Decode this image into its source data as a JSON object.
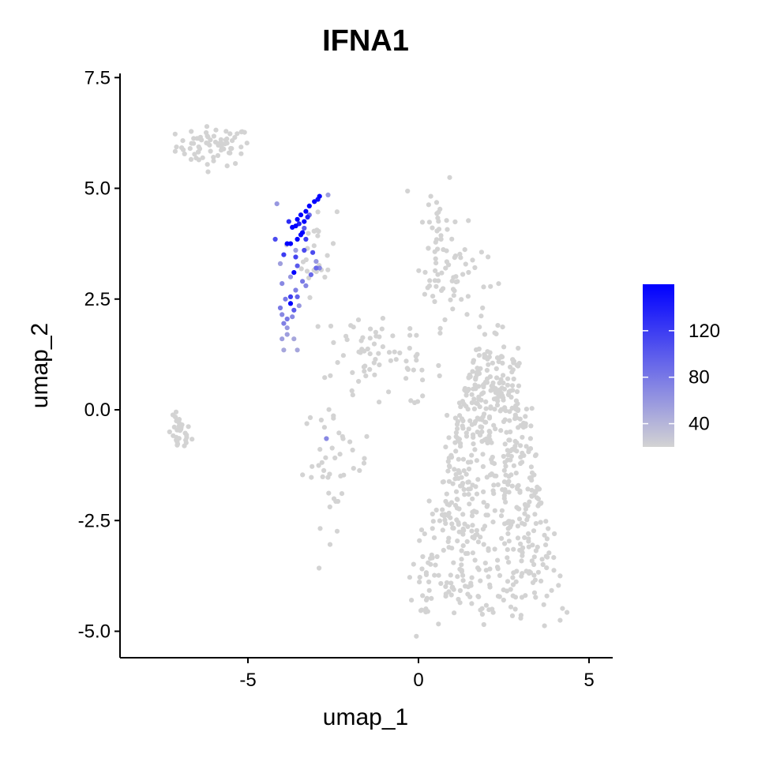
{
  "chart_data": {
    "type": "scatter",
    "title": "IFNA1",
    "xlabel": "umap_1",
    "ylabel": "umap_2",
    "xlim": [
      -8.5,
      5.8
    ],
    "ylim": [
      -5.6,
      7.6
    ],
    "x_ticks": [
      -5,
      0,
      5
    ],
    "x_tick_labels": [
      "-5",
      "0",
      "5"
    ],
    "y_ticks": [
      -5,
      -2.5,
      0,
      2.5,
      5,
      7.5
    ],
    "y_tick_labels": [
      "-5.0",
      "-2.5",
      "0.0",
      "2.5",
      "5.0",
      "7.5"
    ],
    "grid": false,
    "legend": {
      "placement": "right",
      "type": "colorbar",
      "min": 20,
      "max": 160,
      "ticks": [
        40,
        80,
        120
      ],
      "tick_labels": [
        "40",
        "80",
        "120"
      ],
      "low_color": "#d3d3d3",
      "high_color": "#0000ff"
    },
    "clusters": [
      {
        "name": "top-left",
        "center": [
          -6.0,
          5.95
        ],
        "spread": [
          0.55,
          0.22
        ],
        "n": 70,
        "value": 0
      },
      {
        "name": "far-left",
        "center": [
          -7.0,
          -0.55
        ],
        "spread": [
          0.17,
          0.2
        ],
        "n": 30,
        "value": 0
      },
      {
        "name": "upper-middle",
        "center": [
          -1.8,
          1.4
        ],
        "spread": [
          0.5,
          0.45
        ],
        "n": 40,
        "value": 0
      },
      {
        "name": "center-spur",
        "center": [
          0.55,
          3.9
        ],
        "spread": [
          0.25,
          0.9
        ],
        "n": 40,
        "value": 0
      },
      {
        "name": "right-arm",
        "center": [
          1.1,
          3.0
        ],
        "spread": [
          0.45,
          0.55
        ],
        "n": 45,
        "value": 0
      },
      {
        "name": "left-mid-grey",
        "center": [
          -3.0,
          3.6
        ],
        "spread": [
          0.3,
          0.5
        ],
        "n": 25,
        "value": 0
      },
      {
        "name": "lower-left",
        "center": [
          -2.4,
          -1.2
        ],
        "spread": [
          0.5,
          0.7
        ],
        "n": 45,
        "value": 0
      },
      {
        "name": "connector",
        "center": [
          -0.4,
          0.9
        ],
        "spread": [
          0.55,
          0.4
        ],
        "n": 30,
        "value": 0
      },
      {
        "name": "main-body",
        "center": [
          2.3,
          -2.2
        ],
        "spread": [
          1.4,
          1.7
        ],
        "n": 650,
        "value": 0
      }
    ],
    "expressing_points": [
      [
        -2.9,
        4.82,
        160
      ],
      [
        -3.05,
        4.7,
        160
      ],
      [
        -3.2,
        4.6,
        160
      ],
      [
        -3.3,
        4.48,
        160
      ],
      [
        -3.45,
        4.4,
        160
      ],
      [
        -3.55,
        4.3,
        160
      ],
      [
        -3.35,
        4.25,
        160
      ],
      [
        -3.6,
        4.15,
        160
      ],
      [
        -3.7,
        4.12,
        160
      ],
      [
        -3.4,
        4.0,
        160
      ],
      [
        -3.55,
        3.85,
        160
      ],
      [
        -3.75,
        3.75,
        160
      ],
      [
        -3.85,
        3.75,
        160
      ],
      [
        -3.45,
        3.95,
        155
      ],
      [
        -3.65,
        3.1,
        160
      ],
      [
        -3.75,
        2.4,
        160
      ],
      [
        -2.95,
        4.75,
        150
      ],
      [
        -3.25,
        4.35,
        140
      ],
      [
        -3.5,
        4.2,
        140
      ],
      [
        -3.8,
        4.25,
        130
      ],
      [
        -3.3,
        3.85,
        120
      ],
      [
        -3.95,
        3.5,
        120
      ],
      [
        -3.6,
        3.45,
        115
      ],
      [
        -3.35,
        3.6,
        110
      ],
      [
        -3.1,
        3.55,
        110
      ],
      [
        -4.2,
        3.85,
        110
      ],
      [
        -3.55,
        3.25,
        100
      ],
      [
        -3.75,
        2.55,
        120
      ],
      [
        -3.65,
        2.25,
        100
      ],
      [
        -3.55,
        2.55,
        95
      ],
      [
        -3.0,
        3.2,
        90
      ],
      [
        -3.15,
        3.05,
        90
      ],
      [
        -3.2,
        4.4,
        90
      ],
      [
        -3.9,
        2.5,
        80
      ],
      [
        -4.05,
        2.3,
        80
      ],
      [
        -3.85,
        2.05,
        80
      ],
      [
        -3.95,
        1.95,
        75
      ],
      [
        -4.0,
        2.15,
        70
      ],
      [
        -3.7,
        2.1,
        70
      ],
      [
        -3.6,
        2.7,
        75
      ],
      [
        -3.4,
        2.9,
        80
      ],
      [
        -4.0,
        2.85,
        70
      ],
      [
        -3.3,
        2.8,
        70
      ],
      [
        -2.9,
        3.2,
        70
      ],
      [
        -3.35,
        4.1,
        100
      ],
      [
        -4.15,
        4.65,
        60
      ],
      [
        -2.65,
        4.85,
        55
      ],
      [
        -4.0,
        1.6,
        55
      ],
      [
        -3.85,
        1.7,
        55
      ],
      [
        -3.65,
        1.6,
        50
      ],
      [
        -3.55,
        1.35,
        50
      ],
      [
        -3.95,
        1.35,
        50
      ],
      [
        -3.0,
        3.35,
        60
      ],
      [
        -2.7,
        -0.65,
        70
      ],
      [
        -3.75,
        3.0,
        60
      ],
      [
        -3.5,
        2.35,
        60
      ],
      [
        -3.85,
        1.85,
        60
      ],
      [
        -4.05,
        3.3,
        55
      ],
      [
        -3.6,
        3.6,
        55
      ]
    ]
  }
}
